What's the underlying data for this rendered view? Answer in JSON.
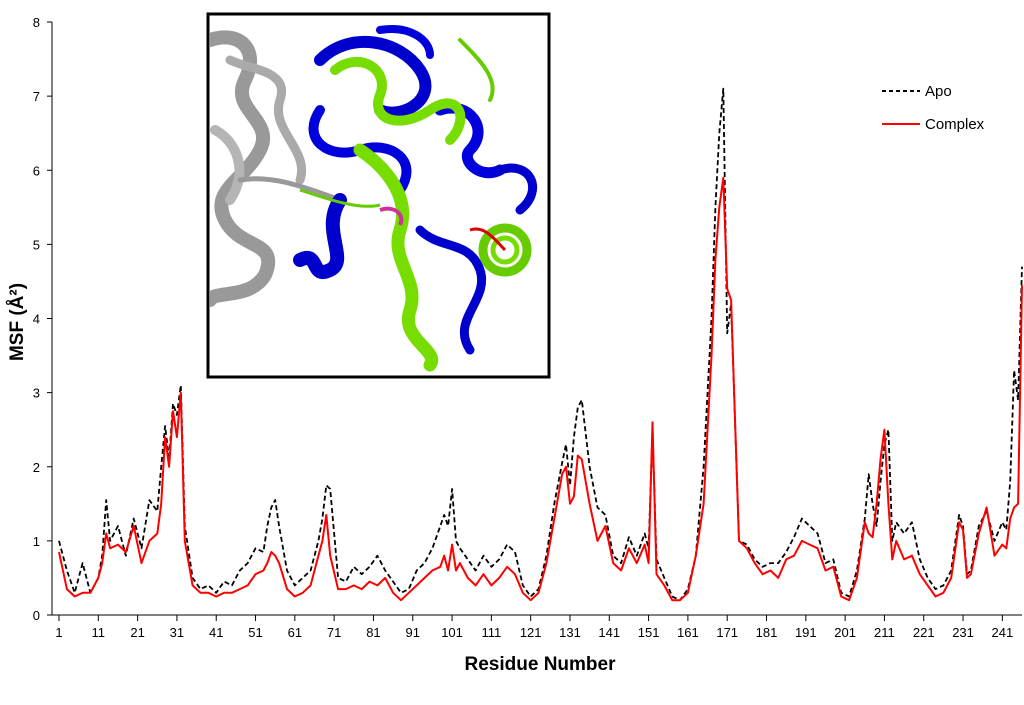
{
  "chart_data": {
    "type": "line",
    "title": "",
    "xlabel": "Residue Number",
    "ylabel": "MSF (Å²)",
    "ylim": [
      0,
      8
    ],
    "y_ticks": [
      "0",
      "1",
      "2",
      "3",
      "4",
      "5",
      "6",
      "7",
      "8"
    ],
    "x_ticks": [
      "1",
      "11",
      "21",
      "31",
      "41",
      "51",
      "61",
      "71",
      "81",
      "91",
      "101",
      "111",
      "121",
      "131",
      "141",
      "151",
      "161",
      "171",
      "181",
      "191",
      "201",
      "211",
      "221",
      "231",
      "241"
    ],
    "grid": false,
    "legend_position": "top-right",
    "series": [
      {
        "name": "Apo",
        "color": "#000000",
        "dash": "dashed",
        "x": [
          1,
          3,
          5,
          7,
          9,
          11,
          12,
          13,
          14,
          16,
          18,
          20,
          22,
          24,
          26,
          27,
          28,
          29,
          30,
          31,
          32,
          33,
          35,
          37,
          39,
          41,
          43,
          45,
          47,
          49,
          51,
          53,
          54,
          55,
          56,
          57,
          59,
          61,
          63,
          65,
          67,
          68,
          69,
          70,
          72,
          74,
          76,
          78,
          80,
          82,
          84,
          86,
          88,
          90,
          92,
          94,
          96,
          98,
          99,
          100,
          101,
          102,
          103,
          105,
          107,
          109,
          111,
          113,
          115,
          117,
          119,
          121,
          123,
          125,
          127,
          129,
          130,
          131,
          132,
          133,
          134,
          136,
          138,
          140,
          142,
          144,
          146,
          148,
          150,
          151,
          152,
          153,
          155,
          157,
          159,
          161,
          163,
          165,
          167,
          168,
          169,
          170,
          171,
          172,
          174,
          176,
          178,
          180,
          182,
          184,
          186,
          188,
          190,
          192,
          194,
          196,
          198,
          200,
          202,
          204,
          206,
          207,
          208,
          209,
          210,
          211,
          212,
          213,
          214,
          216,
          218,
          220,
          222,
          224,
          226,
          228,
          230,
          231,
          232,
          233,
          235,
          237,
          239,
          241,
          242,
          243,
          244,
          245,
          246
        ],
        "values": [
          1.0,
          0.6,
          0.3,
          0.7,
          0.3,
          0.5,
          0.8,
          1.55,
          1.0,
          1.2,
          0.8,
          1.3,
          0.9,
          1.55,
          1.4,
          2.0,
          2.55,
          2.1,
          2.85,
          2.7,
          3.1,
          1.2,
          0.5,
          0.35,
          0.4,
          0.3,
          0.45,
          0.4,
          0.6,
          0.7,
          0.9,
          0.85,
          1.2,
          1.45,
          1.55,
          1.2,
          0.6,
          0.4,
          0.5,
          0.6,
          1.0,
          1.3,
          1.75,
          1.7,
          0.5,
          0.45,
          0.65,
          0.55,
          0.65,
          0.8,
          0.6,
          0.45,
          0.3,
          0.35,
          0.6,
          0.7,
          0.9,
          1.2,
          1.35,
          1.2,
          1.7,
          1.0,
          0.9,
          0.75,
          0.6,
          0.8,
          0.65,
          0.75,
          0.95,
          0.85,
          0.4,
          0.25,
          0.35,
          0.8,
          1.5,
          2.05,
          2.3,
          1.75,
          2.4,
          2.8,
          2.9,
          2.0,
          1.45,
          1.35,
          0.8,
          0.7,
          1.05,
          0.8,
          1.1,
          0.9,
          2.5,
          0.75,
          0.5,
          0.25,
          0.2,
          0.35,
          0.8,
          2.0,
          4.0,
          5.5,
          6.5,
          7.1,
          3.8,
          4.2,
          1.0,
          0.95,
          0.75,
          0.65,
          0.7,
          0.7,
          0.85,
          1.05,
          1.3,
          1.2,
          1.1,
          0.7,
          0.75,
          0.3,
          0.25,
          0.6,
          1.3,
          1.9,
          1.5,
          1.2,
          1.8,
          2.3,
          2.5,
          1.0,
          1.25,
          1.1,
          1.25,
          0.75,
          0.5,
          0.35,
          0.4,
          0.6,
          1.35,
          1.2,
          0.55,
          0.6,
          1.2,
          1.4,
          1.0,
          1.25,
          1.15,
          1.8,
          3.3,
          2.9,
          4.7
        ],
        "smooth": false
      },
      {
        "name": "Complex",
        "color": "#ff0000",
        "dash": "solid",
        "x": [
          1,
          3,
          5,
          7,
          9,
          11,
          12,
          13,
          14,
          16,
          18,
          20,
          22,
          24,
          26,
          27,
          28,
          29,
          30,
          31,
          32,
          33,
          35,
          37,
          39,
          41,
          43,
          45,
          47,
          49,
          51,
          53,
          54,
          55,
          56,
          57,
          59,
          61,
          63,
          65,
          67,
          68,
          69,
          70,
          72,
          74,
          76,
          78,
          80,
          82,
          84,
          86,
          88,
          90,
          92,
          94,
          96,
          98,
          99,
          100,
          101,
          102,
          103,
          105,
          107,
          109,
          111,
          113,
          115,
          117,
          119,
          121,
          123,
          125,
          127,
          129,
          130,
          131,
          132,
          133,
          134,
          136,
          138,
          140,
          142,
          144,
          146,
          148,
          150,
          151,
          152,
          153,
          155,
          157,
          159,
          161,
          163,
          165,
          167,
          168,
          169,
          170,
          171,
          172,
          174,
          176,
          178,
          180,
          182,
          184,
          186,
          188,
          190,
          192,
          194,
          196,
          198,
          200,
          202,
          204,
          206,
          207,
          208,
          209,
          210,
          211,
          212,
          213,
          214,
          216,
          218,
          220,
          222,
          224,
          226,
          228,
          230,
          231,
          232,
          233,
          235,
          237,
          239,
          241,
          242,
          243,
          244,
          245,
          246
        ],
        "values": [
          0.85,
          0.35,
          0.25,
          0.3,
          0.3,
          0.5,
          0.7,
          1.1,
          0.9,
          0.95,
          0.85,
          1.2,
          0.7,
          1.0,
          1.1,
          1.5,
          2.4,
          2.0,
          2.75,
          2.4,
          3.0,
          1.0,
          0.4,
          0.3,
          0.3,
          0.25,
          0.3,
          0.3,
          0.35,
          0.4,
          0.55,
          0.6,
          0.7,
          0.85,
          0.8,
          0.7,
          0.35,
          0.25,
          0.3,
          0.4,
          0.8,
          1.0,
          1.35,
          0.8,
          0.35,
          0.35,
          0.4,
          0.35,
          0.45,
          0.4,
          0.5,
          0.3,
          0.2,
          0.3,
          0.4,
          0.5,
          0.6,
          0.65,
          0.8,
          0.6,
          0.95,
          0.6,
          0.7,
          0.5,
          0.4,
          0.55,
          0.4,
          0.5,
          0.65,
          0.55,
          0.3,
          0.2,
          0.3,
          0.7,
          1.3,
          1.9,
          2.0,
          1.5,
          1.6,
          2.15,
          2.1,
          1.5,
          1.0,
          1.2,
          0.7,
          0.6,
          0.9,
          0.7,
          0.95,
          0.7,
          2.6,
          0.55,
          0.4,
          0.2,
          0.2,
          0.3,
          0.8,
          1.5,
          3.5,
          4.8,
          5.5,
          5.9,
          4.4,
          4.25,
          1.0,
          0.9,
          0.7,
          0.55,
          0.6,
          0.5,
          0.75,
          0.8,
          1.0,
          0.95,
          0.9,
          0.6,
          0.65,
          0.25,
          0.2,
          0.5,
          1.25,
          1.1,
          1.05,
          1.5,
          2.1,
          2.5,
          1.5,
          0.75,
          1.0,
          0.75,
          0.8,
          0.55,
          0.4,
          0.25,
          0.3,
          0.5,
          1.25,
          1.15,
          0.5,
          0.55,
          1.1,
          1.45,
          0.8,
          0.95,
          0.9,
          1.3,
          1.45,
          1.5,
          4.45
        ],
        "smooth": false
      }
    ]
  },
  "inset": {
    "description_icon": "protein-structure-image"
  }
}
